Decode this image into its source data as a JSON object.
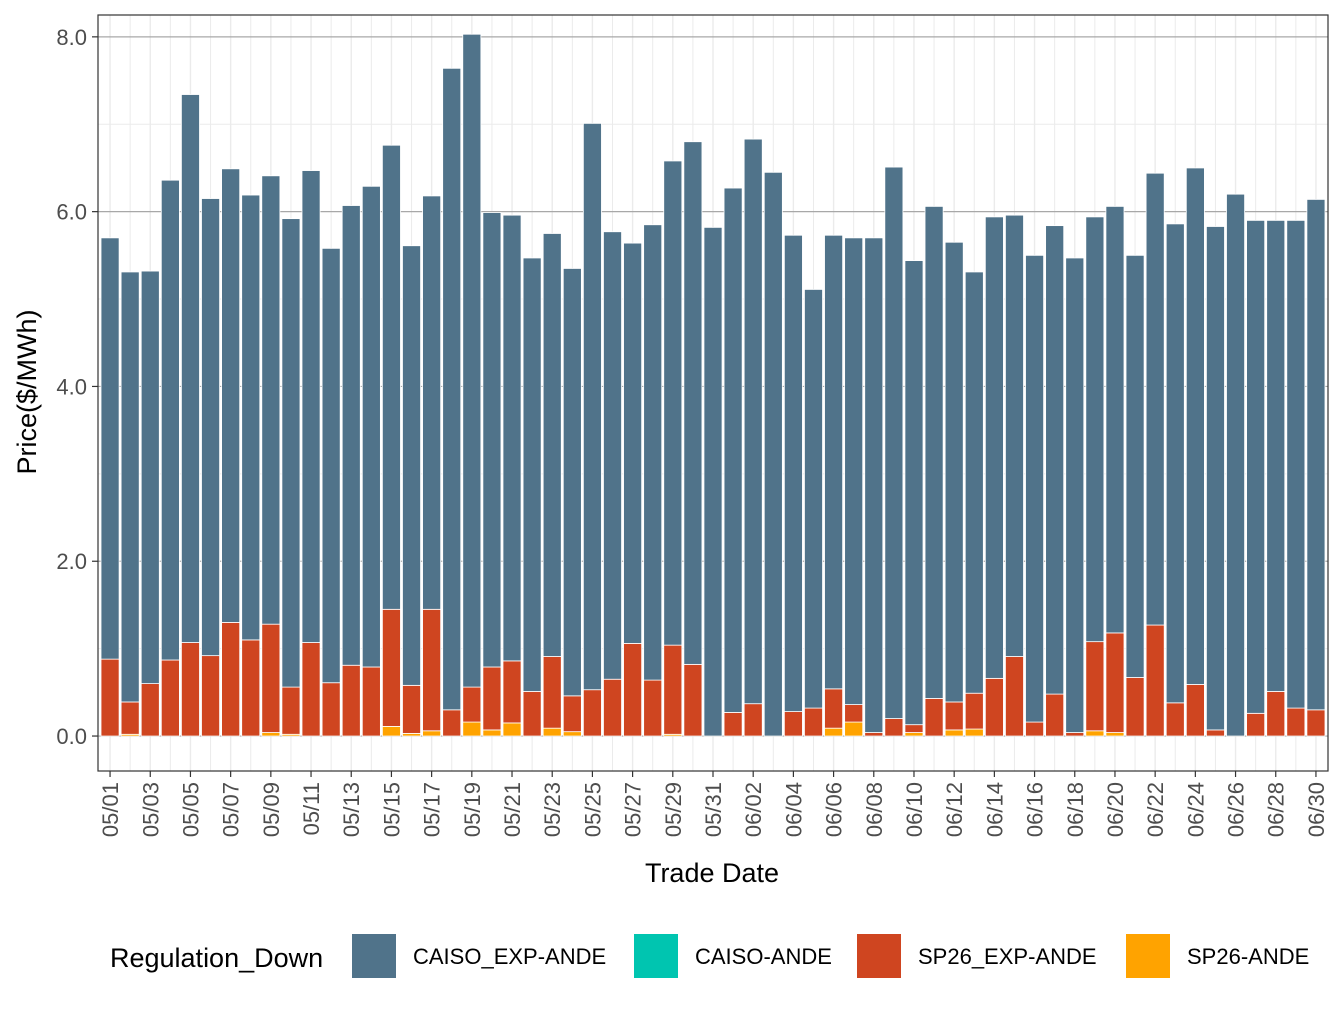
{
  "chart_data": {
    "type": "bar",
    "stacked": true,
    "title": "",
    "xlabel": "Trade Date",
    "ylabel": "Price($/MWh)",
    "ylim": [
      -0.4,
      8.25
    ],
    "yticks": [
      0,
      2,
      4,
      6,
      8
    ],
    "ytick_labels": [
      "0.0",
      "2.0",
      "4.0",
      "6.0",
      "8.0"
    ],
    "grid": true,
    "legend_title": "Regulation_Down",
    "legend_position": "bottom",
    "categories": [
      "05/01",
      "05/02",
      "05/03",
      "05/04",
      "05/05",
      "05/06",
      "05/07",
      "05/08",
      "05/09",
      "05/10",
      "05/11",
      "05/12",
      "05/13",
      "05/14",
      "05/15",
      "05/16",
      "05/17",
      "05/18",
      "05/19",
      "05/20",
      "05/21",
      "05/22",
      "05/23",
      "05/24",
      "05/25",
      "05/26",
      "05/27",
      "05/28",
      "05/29",
      "05/30",
      "05/31",
      "06/01",
      "06/02",
      "06/03",
      "06/04",
      "06/05",
      "06/06",
      "06/07",
      "06/08",
      "06/09",
      "06/10",
      "06/11",
      "06/12",
      "06/13",
      "06/14",
      "06/15",
      "06/16",
      "06/17",
      "06/18",
      "06/19",
      "06/20",
      "06/21",
      "06/22",
      "06/23",
      "06/24",
      "06/25",
      "06/26",
      "06/27",
      "06/28",
      "06/29",
      "06/30"
    ],
    "tick_labels": [
      "05/01",
      "05/03",
      "05/05",
      "05/07",
      "05/09",
      "05/11",
      "05/13",
      "05/15",
      "05/17",
      "05/19",
      "05/21",
      "05/23",
      "05/25",
      "05/27",
      "05/29",
      "05/31",
      "06/02",
      "06/04",
      "06/06",
      "06/08",
      "06/10",
      "06/12",
      "06/14",
      "06/16",
      "06/18",
      "06/20",
      "06/22",
      "06/24",
      "06/26",
      "06/28",
      "06/30"
    ],
    "stack_order": [
      "SP26-ANDE",
      "SP26_EXP-ANDE",
      "CAISO-ANDE",
      "CAISO_EXP-ANDE"
    ],
    "series": [
      {
        "name": "CAISO_EXP-ANDE",
        "color": "#50738A",
        "values": [
          4.82,
          4.92,
          4.72,
          5.49,
          6.27,
          5.23,
          5.19,
          5.09,
          5.13,
          5.36,
          5.4,
          4.97,
          5.26,
          5.5,
          5.31,
          5.03,
          4.73,
          7.34,
          7.47,
          5.2,
          5.1,
          4.96,
          4.84,
          4.89,
          6.48,
          5.12,
          4.58,
          5.21,
          5.54,
          5.98,
          5.82,
          6.0,
          6.46,
          6.45,
          5.45,
          4.79,
          5.19,
          5.34,
          5.66,
          6.31,
          5.31,
          5.63,
          5.26,
          4.82,
          5.28,
          5.05,
          5.34,
          5.36,
          5.43,
          4.86,
          4.88,
          4.83,
          5.17,
          5.48,
          5.91,
          5.76,
          6.2,
          5.64,
          5.39,
          5.58,
          5.84
        ]
      },
      {
        "name": "CAISO-ANDE",
        "color": "#00C5B0",
        "values": [
          0,
          0,
          0,
          0,
          0,
          0,
          0,
          0,
          0,
          0,
          0,
          0,
          0,
          0,
          0,
          0,
          0,
          0,
          0,
          0,
          0,
          0,
          0,
          0,
          0,
          0,
          0,
          0,
          0,
          0,
          0,
          0,
          0,
          0,
          0,
          0,
          0,
          0,
          0,
          0,
          0,
          0,
          0,
          0,
          0,
          0,
          0,
          0,
          0,
          0,
          0,
          0,
          0,
          0,
          0,
          0,
          0,
          0,
          0,
          0,
          0
        ]
      },
      {
        "name": "SP26_EXP-ANDE",
        "color": "#CF4520",
        "values": [
          0.88,
          0.37,
          0.6,
          0.87,
          1.07,
          0.92,
          1.3,
          1.1,
          1.24,
          0.54,
          1.07,
          0.61,
          0.81,
          0.79,
          1.34,
          0.55,
          1.39,
          0.3,
          0.4,
          0.72,
          0.71,
          0.51,
          0.82,
          0.41,
          0.53,
          0.65,
          1.06,
          0.64,
          1.02,
          0.82,
          0,
          0.27,
          0.37,
          0,
          0.28,
          0.32,
          0.45,
          0.2,
          0.04,
          0.2,
          0.09,
          0.43,
          0.32,
          0.41,
          0.66,
          0.91,
          0.16,
          0.48,
          0.04,
          1.02,
          1.14,
          0.67,
          1.27,
          0.38,
          0.59,
          0.07,
          0,
          0.26,
          0.51,
          0.32,
          0.3
        ]
      },
      {
        "name": "SP26-ANDE",
        "color": "#FFA300",
        "values": [
          0,
          0.02,
          0,
          0,
          0,
          0,
          0,
          0,
          0.04,
          0.02,
          0,
          0,
          0,
          0,
          0.11,
          0.03,
          0.06,
          0,
          0.16,
          0.07,
          0.15,
          0,
          0.09,
          0.05,
          0,
          0,
          0,
          0,
          0.02,
          0,
          0,
          0,
          0,
          0,
          0,
          0,
          0.09,
          0.16,
          0,
          0,
          0.04,
          0,
          0.07,
          0.08,
          0,
          0,
          0,
          0,
          0,
          0.06,
          0.04,
          0,
          0,
          0,
          0,
          0,
          0,
          0,
          0,
          0,
          0
        ]
      }
    ]
  }
}
